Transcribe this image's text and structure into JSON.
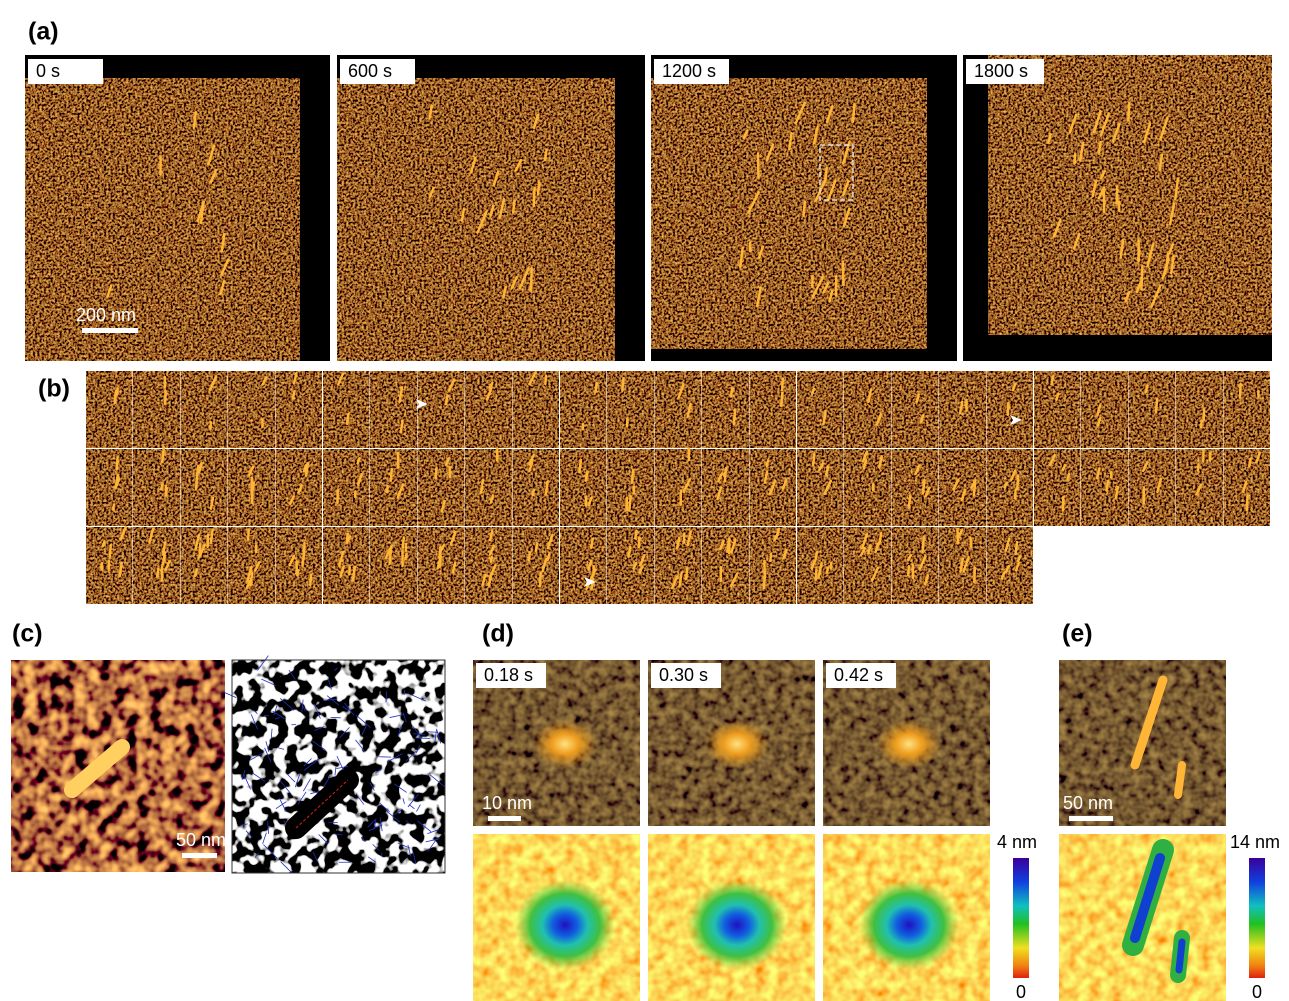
{
  "panels": {
    "a": {
      "label": "(a)",
      "frames": [
        "0 s",
        "600 s",
        "1200 s",
        "1800 s"
      ],
      "scale_bar": "200 nm"
    },
    "b": {
      "label": "(b)"
    },
    "c": {
      "label": "(c)",
      "scale_bar": "50 nm"
    },
    "d": {
      "label": "(d)",
      "frames": [
        "0.18 s",
        "0.30 s",
        "0.42 s"
      ],
      "scale_bar": "10 nm",
      "colorbar": {
        "max": "4 nm",
        "min": "0"
      }
    },
    "e": {
      "label": "(e)",
      "scale_bar": "50 nm",
      "colorbar": {
        "max": "14 nm",
        "min": "0"
      }
    }
  }
}
